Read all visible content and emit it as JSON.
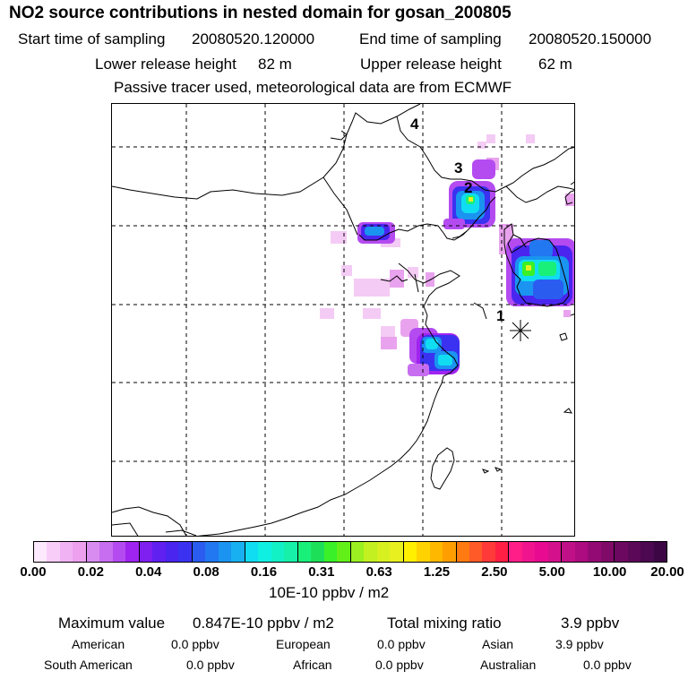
{
  "header": {
    "title": "NO2 source contributions in nested domain for gosan_200805",
    "start_label": "Start time of sampling",
    "start_value": "20080520.120000",
    "end_label": "End time of sampling",
    "end_value": "20080520.150000",
    "lower_label": "Lower release height",
    "lower_value": "82 m",
    "upper_label": "Upper release height",
    "upper_value": "62 m",
    "note": "Passive tracer used, meteorological data are from ECMWF"
  },
  "map": {
    "release_markers": [
      "1",
      "2",
      "3",
      "4"
    ],
    "receptor_icon": "asterisk-star-icon"
  },
  "colorbar": {
    "tick_labels": [
      "0.00",
      "0.02",
      "0.04",
      "0.08",
      "0.16",
      "0.31",
      "0.63",
      "1.25",
      "2.50",
      "5.00",
      "10.00",
      "20.00"
    ],
    "colors": [
      "#fde9fd",
      "#f8cdf8",
      "#f1b2f3",
      "#eda0ee",
      "#d98cf0",
      "#c76ef0",
      "#b44bf0",
      "#a024f0",
      "#7f1ff0",
      "#6020f0",
      "#4a25f0",
      "#3a32f0",
      "#2a5cf0",
      "#2278f0",
      "#1a94f0",
      "#18b0f0",
      "#10dcf2",
      "#10f0e2",
      "#12f0c6",
      "#16f0a8",
      "#19f07a",
      "#1ee058",
      "#3af028",
      "#62f018",
      "#9af020",
      "#c2f020",
      "#d8f020",
      "#e8f020",
      "#fff000",
      "#ffd200",
      "#ffb800",
      "#ff9e00",
      "#ff7a10",
      "#ff5a28",
      "#ff3a38",
      "#ff1e44",
      "#ff1e88",
      "#f0148e",
      "#e80a90",
      "#d4108c",
      "#c01088",
      "#ac0c80",
      "#940a74",
      "#800a68",
      "#6c0860",
      "#5c0858",
      "#4c0850",
      "#3c0645"
    ],
    "unit": "10E-10 ppbv / m2"
  },
  "stats": {
    "max_label": "Maximum value",
    "max_value": "0.847E-10 ppbv / m2",
    "total_label": "Total mixing ratio",
    "total_value": "3.9 ppbv",
    "regions": [
      {
        "name": "American",
        "value": "0.0 ppbv"
      },
      {
        "name": "European",
        "value": "0.0 ppbv"
      },
      {
        "name": "Asian",
        "value": "3.9 ppbv"
      },
      {
        "name": "South American",
        "value": "0.0 ppbv"
      },
      {
        "name": "African",
        "value": "0.0 ppbv"
      },
      {
        "name": "Australian",
        "value": "0.0 ppbv"
      }
    ]
  }
}
